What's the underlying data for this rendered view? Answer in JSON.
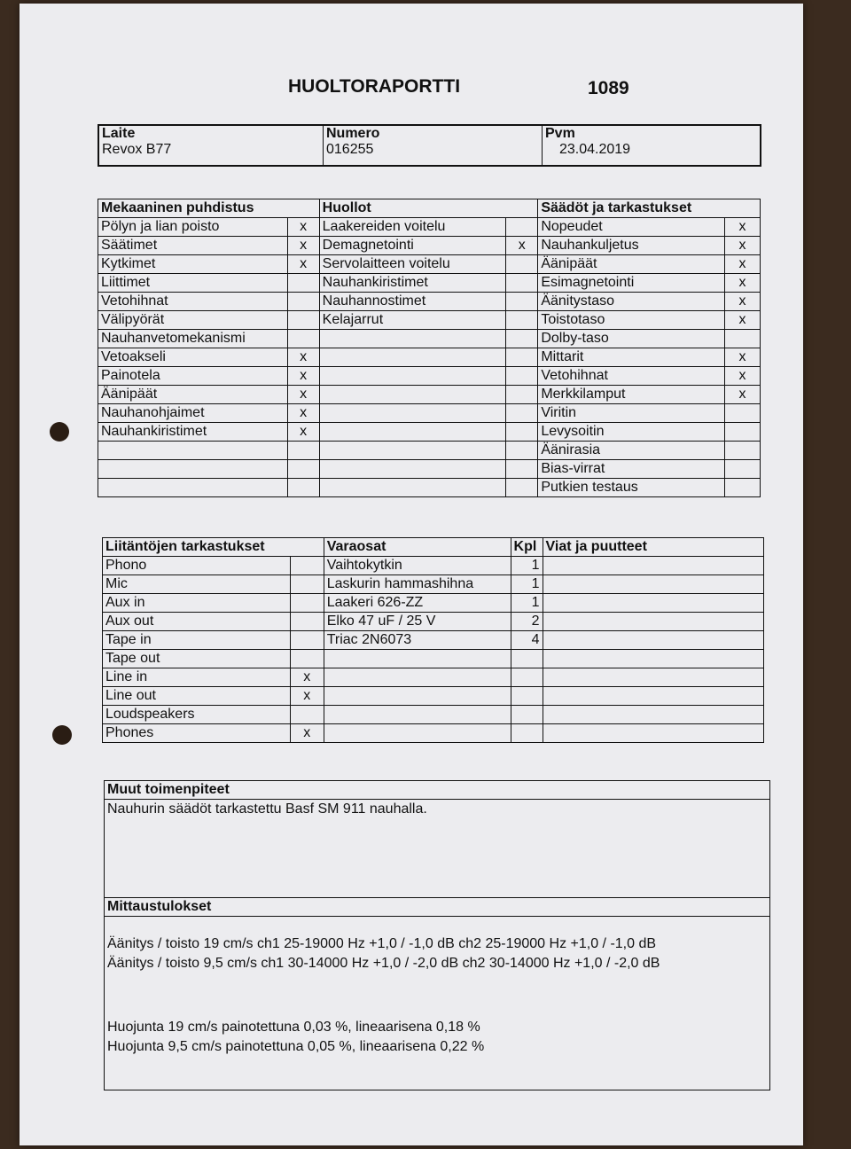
{
  "title": "HUOLTORAPORTTI",
  "report_number": "1089",
  "header": {
    "device_label": "Laite",
    "device_value": "Revox B77",
    "number_label": "Numero",
    "number_value": "016255",
    "date_label": "Pvm",
    "date_value": "23.04.2019"
  },
  "table1": {
    "headers": [
      "Mekaaninen puhdistus",
      "Huollot",
      "Säädöt ja tarkastukset"
    ],
    "rows": [
      [
        "Pölyn ja lian poisto",
        "x",
        "Laakereiden voitelu",
        "",
        "Nopeudet",
        "x"
      ],
      [
        "Säätimet",
        "x",
        "Demagnetointi",
        "x",
        "Nauhankuljetus",
        "x"
      ],
      [
        "Kytkimet",
        "x",
        "Servolaitteen voitelu",
        "",
        "Äänipäät",
        "x"
      ],
      [
        "Liittimet",
        "",
        "Nauhankiristimet",
        "",
        "Esimagnetointi",
        "x"
      ],
      [
        "Vetohihnat",
        "",
        "Nauhannostimet",
        "",
        "Äänitystaso",
        "x"
      ],
      [
        "Välipyörät",
        "",
        "Kelajarrut",
        "",
        "Toistotaso",
        "x"
      ],
      [
        "Nauhanvetomekanismi",
        "",
        "",
        "",
        "Dolby-taso",
        ""
      ],
      [
        "Vetoakseli",
        "x",
        "",
        "",
        "Mittarit",
        "x"
      ],
      [
        "Painotela",
        "x",
        "",
        "",
        "Vetohihnat",
        "x"
      ],
      [
        "Äänipäät",
        "x",
        "",
        "",
        "Merkkilamput",
        "x"
      ],
      [
        "Nauhanohjaimet",
        "x",
        "",
        "",
        "Viritin",
        ""
      ],
      [
        "Nauhankiristimet",
        "x",
        "",
        "",
        "Levysoitin",
        ""
      ],
      [
        "",
        "",
        "",
        "",
        "Äänirasia",
        ""
      ],
      [
        "",
        "",
        "",
        "",
        "Bias-virrat",
        ""
      ],
      [
        "",
        "",
        "",
        "",
        "Putkien testaus",
        ""
      ]
    ]
  },
  "table2": {
    "headers": [
      "Liitäntöjen tarkastukset",
      "Varaosat",
      "Kpl",
      "Viat ja puutteet"
    ],
    "rows": [
      [
        "Phono",
        "",
        "Vaihtokytkin",
        "1",
        ""
      ],
      [
        "Mic",
        "",
        "Laskurin hammashihna",
        "1",
        ""
      ],
      [
        "Aux in",
        "",
        "Laakeri 626-ZZ",
        "1",
        ""
      ],
      [
        "Aux out",
        "",
        "Elko 47 uF / 25 V",
        "2",
        ""
      ],
      [
        "Tape in",
        "",
        "Triac 2N6073",
        "4",
        ""
      ],
      [
        "Tape out",
        "",
        "",
        "",
        ""
      ],
      [
        "Line in",
        "x",
        "",
        "",
        ""
      ],
      [
        "Line out",
        "x",
        "",
        "",
        ""
      ],
      [
        "Loudspeakers",
        "",
        "",
        "",
        ""
      ],
      [
        "Phones",
        "x",
        "",
        "",
        ""
      ]
    ]
  },
  "other": {
    "heading": "Muut toimenpiteet",
    "text": "Nauhurin säädöt tarkastettu Basf SM 911 nauhalla."
  },
  "measurements": {
    "heading": "Mittaustulokset",
    "lines": [
      "Äänitys / toisto 19 cm/s ch1 25-19000 Hz +1,0 / -1,0 dB ch2 25-19000 Hz +1,0 / -1,0 dB",
      "Äänitys / toisto 9,5 cm/s ch1 30-14000 Hz +1,0 / -2,0 dB ch2 30-14000 Hz +1,0 / -2,0 dB",
      "Huojunta 19 cm/s painotettuna 0,03 %, lineaarisena 0,18 %",
      "Huojunta 9,5 cm/s painotettuna 0,05 %, lineaarisena 0,22 %"
    ]
  }
}
